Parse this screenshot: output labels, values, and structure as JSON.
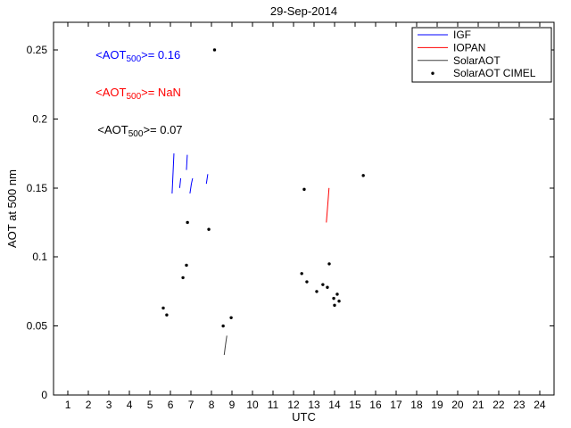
{
  "chart_data": {
    "type": "scatter",
    "title": "29-Sep-2014",
    "xlabel": "UTC",
    "ylabel": "AOT at 500 nm",
    "xlim": [
      0.3,
      24.7
    ],
    "ylim": [
      0,
      0.27
    ],
    "xticks": [
      1,
      2,
      3,
      4,
      5,
      6,
      7,
      8,
      9,
      10,
      11,
      12,
      13,
      14,
      15,
      16,
      17,
      18,
      19,
      20,
      21,
      22,
      23,
      24
    ],
    "ytick_labels": [
      "0",
      "0.05",
      "0.1",
      "0.15",
      "0.2",
      "0.25"
    ],
    "grid": false,
    "axis_color": "#000000",
    "legend": {
      "position": "top-right",
      "entries": [
        {
          "label": "IGF",
          "color": "#0000ff",
          "marker": "line"
        },
        {
          "label": "IOPAN",
          "color": "#ff0000",
          "marker": "line"
        },
        {
          "label": "SolarAOT",
          "color": "#404040",
          "marker": "line"
        },
        {
          "label": "SolarAOT CIMEL",
          "color": "#000000",
          "marker": "dot"
        }
      ]
    },
    "series": [
      {
        "name": "IGF",
        "type": "line",
        "color": "#0000ff",
        "segments": [
          [
            [
              6.08,
              0.146
            ],
            [
              6.13,
              0.162
            ],
            [
              6.17,
              0.175
            ]
          ],
          [
            [
              6.45,
              0.15
            ],
            [
              6.5,
              0.157
            ]
          ],
          [
            [
              6.78,
              0.163
            ],
            [
              6.82,
              0.174
            ]
          ],
          [
            [
              6.95,
              0.146
            ],
            [
              7.02,
              0.153
            ],
            [
              7.08,
              0.157
            ]
          ],
          [
            [
              7.75,
              0.153
            ],
            [
              7.82,
              0.16
            ]
          ]
        ]
      },
      {
        "name": "IOPAN",
        "type": "line",
        "color": "#ff0000",
        "segments": [
          [
            [
              13.6,
              0.125
            ],
            [
              13.68,
              0.14
            ],
            [
              13.73,
              0.15
            ]
          ]
        ]
      },
      {
        "name": "SolarAOT",
        "type": "line",
        "color": "#404040",
        "segments": [
          [
            [
              8.62,
              0.029
            ],
            [
              8.68,
              0.036
            ],
            [
              8.75,
              0.043
            ]
          ]
        ]
      },
      {
        "name": "SolarAOT CIMEL",
        "type": "scatter",
        "color": "#000000",
        "points": [
          [
            5.65,
            0.063
          ],
          [
            5.82,
            0.058
          ],
          [
            6.61,
            0.085
          ],
          [
            6.78,
            0.094
          ],
          [
            6.83,
            0.125
          ],
          [
            7.87,
            0.12
          ],
          [
            8.15,
            0.25
          ],
          [
            8.57,
            0.05
          ],
          [
            8.96,
            0.056
          ],
          [
            12.4,
            0.088
          ],
          [
            12.52,
            0.149
          ],
          [
            12.65,
            0.082
          ],
          [
            13.13,
            0.075
          ],
          [
            13.43,
            0.08
          ],
          [
            13.65,
            0.078
          ],
          [
            13.74,
            0.095
          ],
          [
            13.96,
            0.07
          ],
          [
            14.0,
            0.065
          ],
          [
            14.13,
            0.073
          ],
          [
            14.22,
            0.068
          ],
          [
            15.4,
            0.159
          ]
        ]
      }
    ],
    "annotations": [
      {
        "prefix": "<AOT",
        "sub": "500",
        "suffix": ">= 0.16",
        "color": "#0000ff",
        "x": 2.35,
        "y": 0.246
      },
      {
        "prefix": "<AOT",
        "sub": "500",
        "suffix": ">=  NaN",
        "color": "#ff0000",
        "x": 2.35,
        "y": 0.219
      },
      {
        "prefix": "<AOT",
        "sub": "500",
        "suffix": ">= 0.07",
        "color": "#000000",
        "x": 2.45,
        "y": 0.192
      }
    ]
  }
}
